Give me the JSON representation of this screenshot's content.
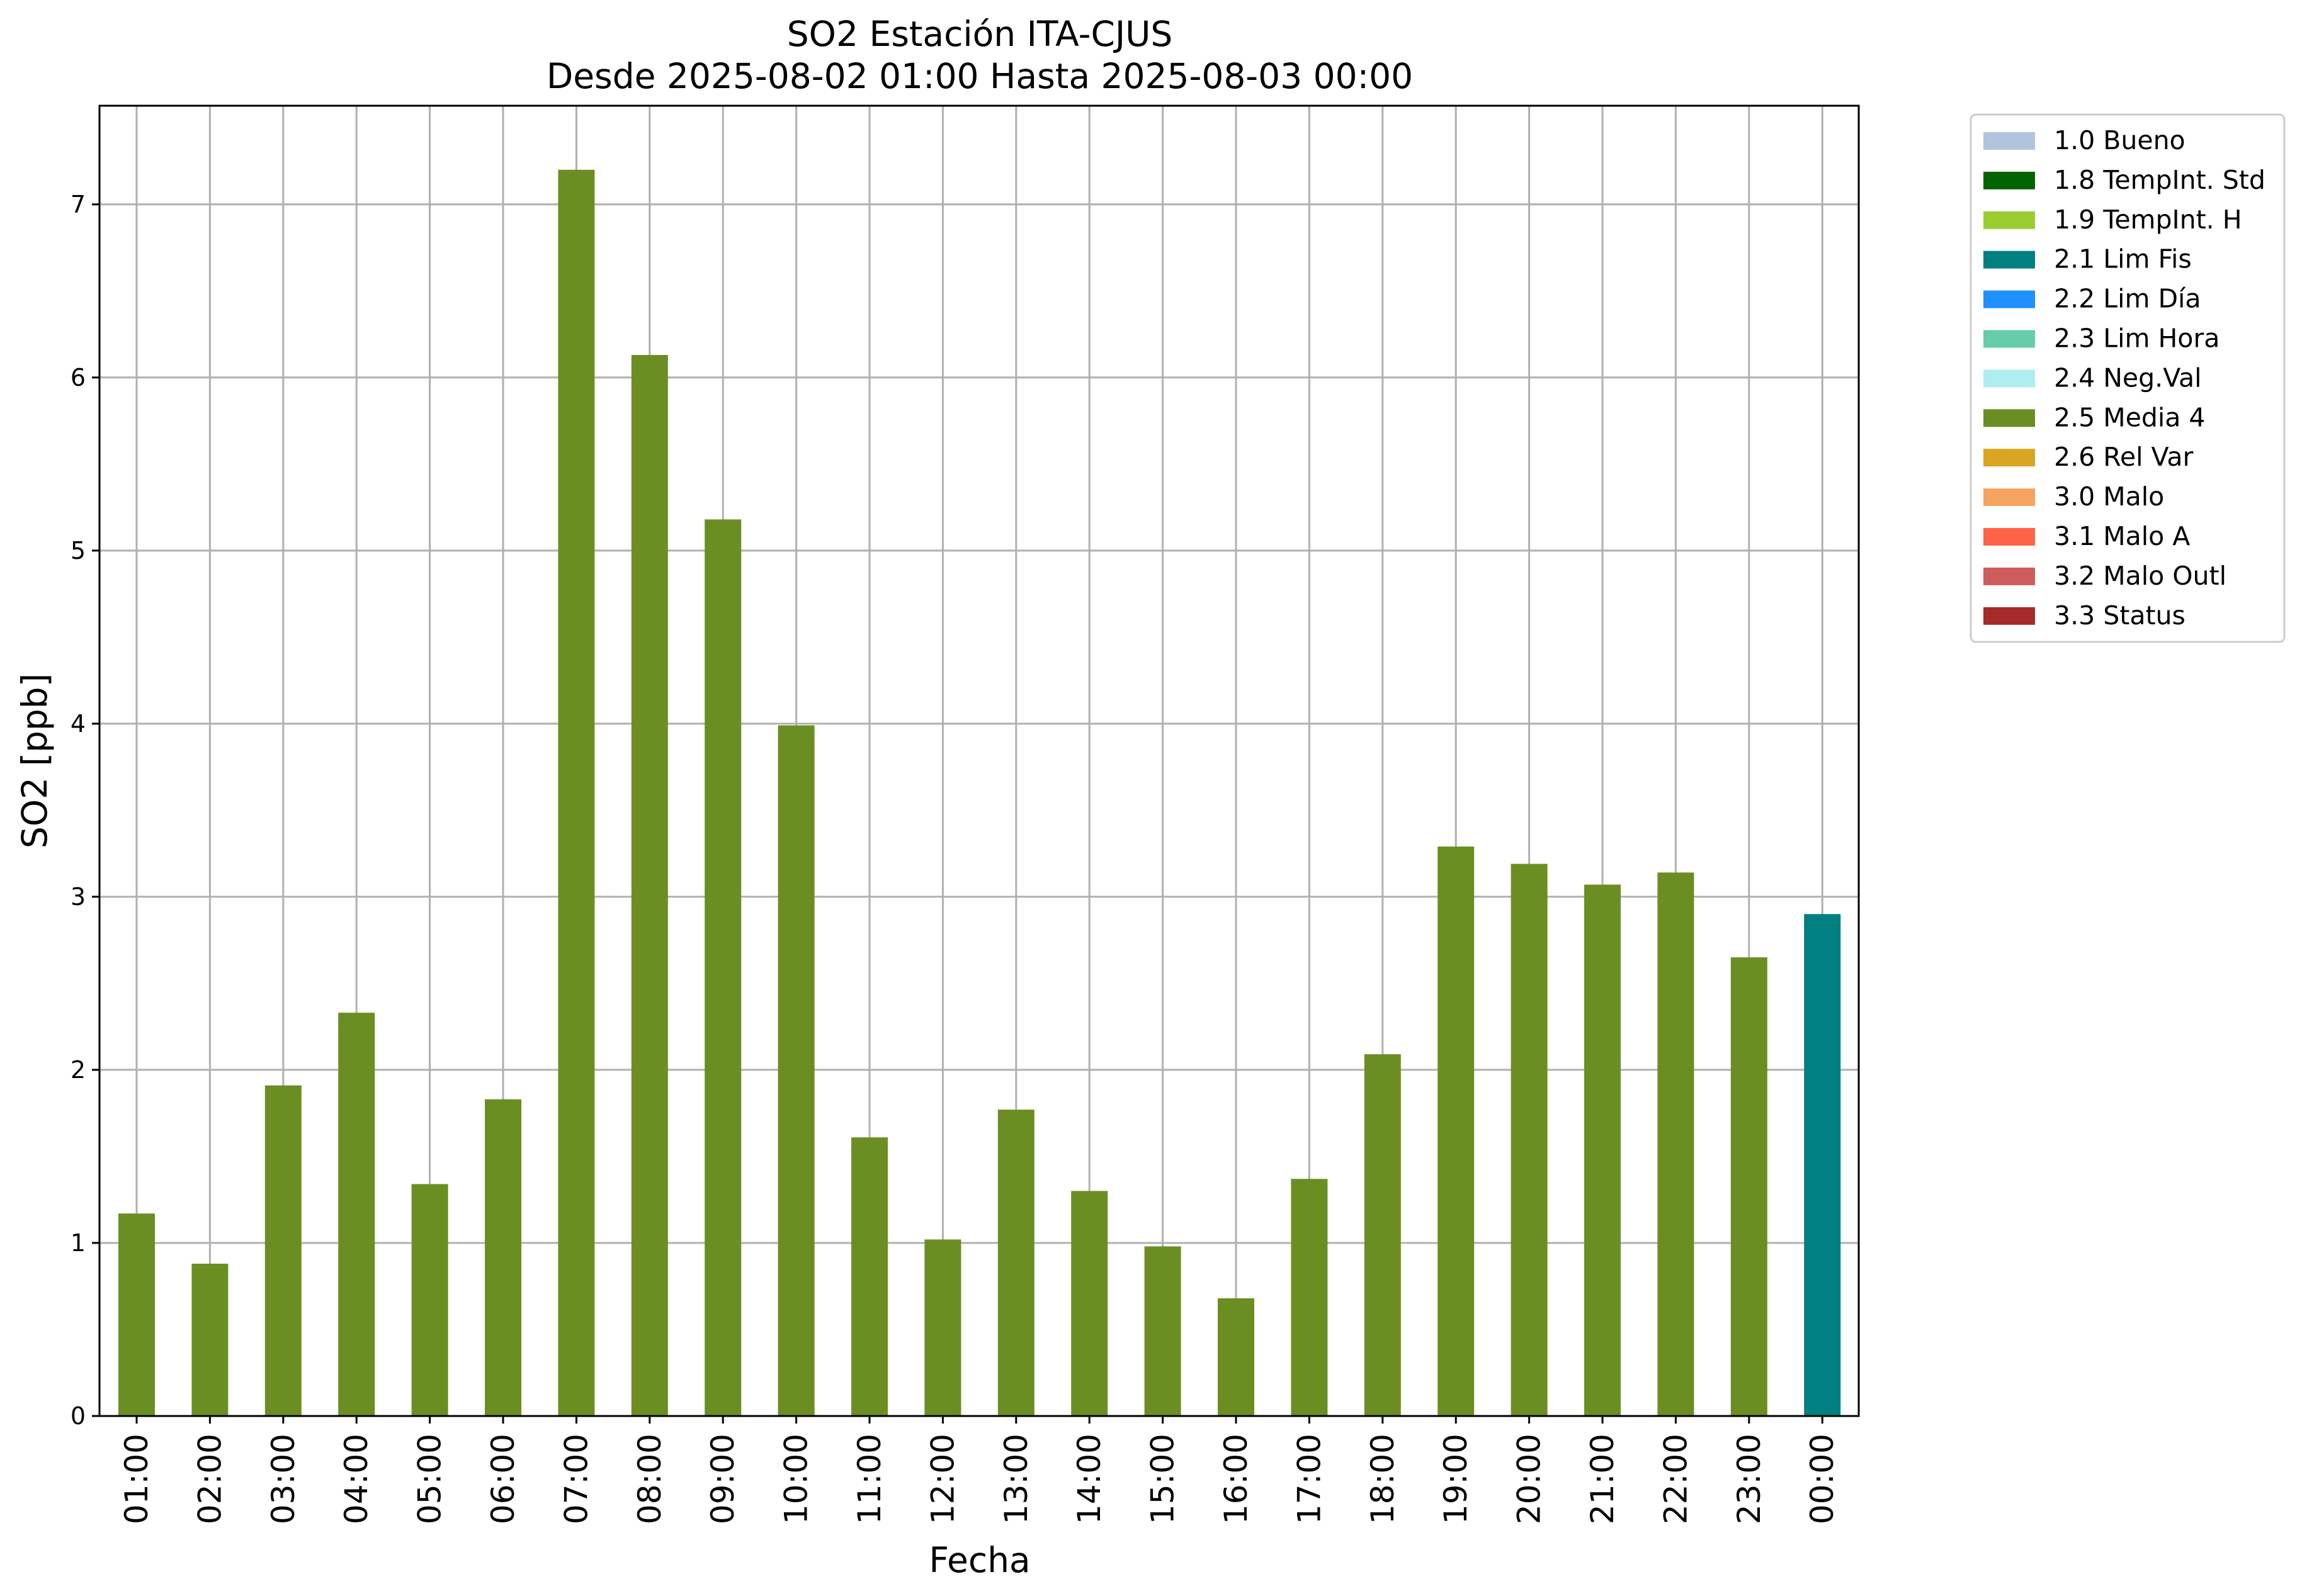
{
  "chart_data": {
    "type": "bar",
    "title": "SO2 Estación ITA-CJUS",
    "subtitle": "Desde 2025-08-02 01:00 Hasta 2025-08-03 00:00",
    "xlabel": "Fecha",
    "ylabel": "SO2 [ppb]",
    "ylim": [
      0,
      7.57
    ],
    "yticks": [
      0,
      1,
      2,
      3,
      4,
      5,
      6,
      7
    ],
    "grid": true,
    "legend_position": "outside-top-right",
    "categories": [
      "01:00",
      "02:00",
      "03:00",
      "04:00",
      "05:00",
      "06:00",
      "07:00",
      "08:00",
      "09:00",
      "10:00",
      "11:00",
      "12:00",
      "13:00",
      "14:00",
      "15:00",
      "16:00",
      "17:00",
      "18:00",
      "19:00",
      "20:00",
      "21:00",
      "22:00",
      "23:00",
      "00:00"
    ],
    "values": [
      1.17,
      0.88,
      1.91,
      2.33,
      1.34,
      1.83,
      7.2,
      6.13,
      5.18,
      3.99,
      1.61,
      1.02,
      1.77,
      1.3,
      0.98,
      0.68,
      1.37,
      2.09,
      3.29,
      3.19,
      3.07,
      3.14,
      2.65,
      2.9
    ],
    "flags": [
      "2.5 Media 4",
      "2.5 Media 4",
      "2.5 Media 4",
      "2.5 Media 4",
      "2.5 Media 4",
      "2.5 Media 4",
      "2.5 Media 4",
      "2.5 Media 4",
      "2.5 Media 4",
      "2.5 Media 4",
      "2.5 Media 4",
      "2.5 Media 4",
      "2.5 Media 4",
      "2.5 Media 4",
      "2.5 Media 4",
      "2.5 Media 4",
      "2.5 Media 4",
      "2.5 Media 4",
      "2.5 Media 4",
      "2.5 Media 4",
      "2.5 Media 4",
      "2.5 Media 4",
      "2.5 Media 4",
      "2.1 Lim Fis"
    ],
    "legend": [
      {
        "label": "1.0 Bueno",
        "color": "#b0c4de"
      },
      {
        "label": "1.8 TempInt. Std",
        "color": "#006400"
      },
      {
        "label": "1.9 TempInt. H",
        "color": "#9acd32"
      },
      {
        "label": "2.1 Lim Fis",
        "color": "#008080"
      },
      {
        "label": "2.2 Lim Día",
        "color": "#1e90ff"
      },
      {
        "label": "2.3 Lim Hora",
        "color": "#66cdaa"
      },
      {
        "label": "2.4 Neg.Val",
        "color": "#afeeee"
      },
      {
        "label": "2.5 Media 4",
        "color": "#6b8e23"
      },
      {
        "label": "2.6 Rel Var",
        "color": "#daa520"
      },
      {
        "label": "3.0 Malo",
        "color": "#f4a460"
      },
      {
        "label": "3.1 Malo A",
        "color": "#ff6347"
      },
      {
        "label": "3.2 Malo Outl",
        "color": "#cd5c5c"
      },
      {
        "label": "3.3 Status",
        "color": "#a52a2a"
      }
    ]
  }
}
